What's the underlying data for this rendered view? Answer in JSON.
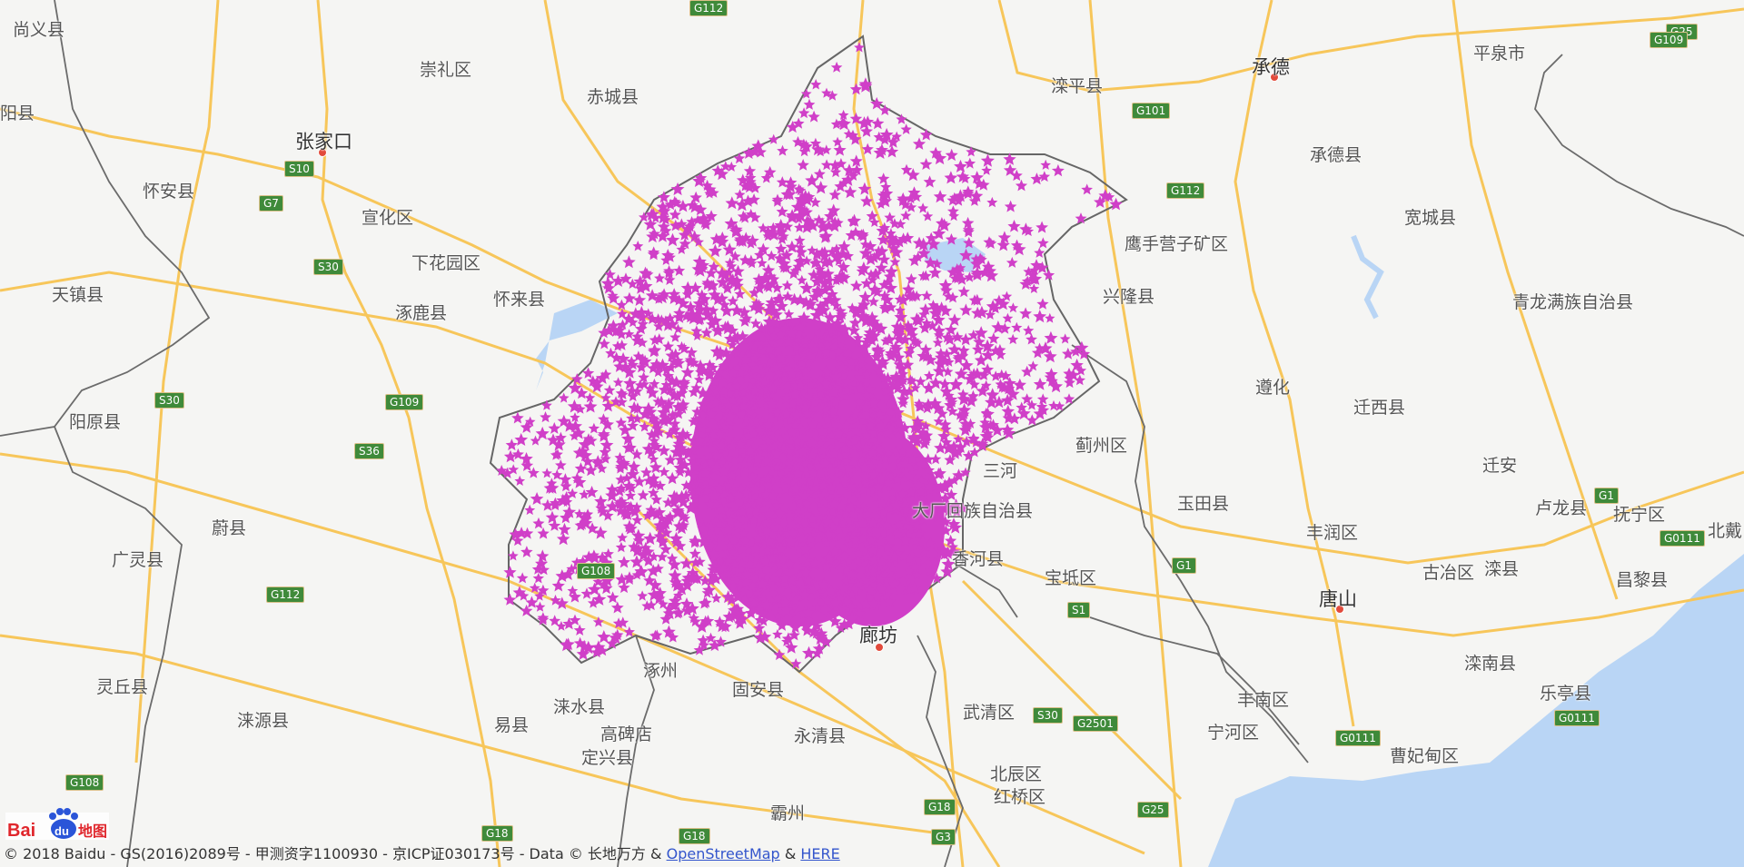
{
  "map": {
    "labels": [
      {
        "text": "尚义县",
        "city": false
      },
      {
        "text": "崇礼区",
        "city": false
      },
      {
        "text": "赤城县",
        "city": false
      },
      {
        "text": "滦平县",
        "city": false
      },
      {
        "text": "承德",
        "city": true
      },
      {
        "text": "平泉市",
        "city": false
      },
      {
        "text": "张家口",
        "city": true
      },
      {
        "text": "承德县",
        "city": false
      },
      {
        "text": "怀安县",
        "city": false
      },
      {
        "text": "宣化区",
        "city": false
      },
      {
        "text": "宽城县",
        "city": false
      },
      {
        "text": "鹰手营子矿区",
        "city": false
      },
      {
        "text": "下花园区",
        "city": false
      },
      {
        "text": "天镇县",
        "city": false
      },
      {
        "text": "怀来县",
        "city": false
      },
      {
        "text": "涿鹿县",
        "city": false
      },
      {
        "text": "兴隆县",
        "city": false
      },
      {
        "text": "青龙满族自治县",
        "city": false
      },
      {
        "text": "遵化",
        "city": false
      },
      {
        "text": "迁西县",
        "city": false
      },
      {
        "text": "阳原县",
        "city": false
      },
      {
        "text": "蓟州区",
        "city": false
      },
      {
        "text": "三河",
        "city": false
      },
      {
        "text": "迁安",
        "city": false
      },
      {
        "text": "大厂回族自治县",
        "city": false
      },
      {
        "text": "玉田县",
        "city": false
      },
      {
        "text": "卢龙县",
        "city": false
      },
      {
        "text": "抚宁区",
        "city": false
      },
      {
        "text": "蔚县",
        "city": false
      },
      {
        "text": "丰润区",
        "city": false
      },
      {
        "text": "广灵县",
        "city": false
      },
      {
        "text": "香河县",
        "city": false
      },
      {
        "text": "宝坻区",
        "city": false
      },
      {
        "text": "古冶区",
        "city": false
      },
      {
        "text": "滦县",
        "city": false
      },
      {
        "text": "昌黎县",
        "city": false
      },
      {
        "text": "唐山",
        "city": true
      },
      {
        "text": "廊坊",
        "city": true
      },
      {
        "text": "涿州",
        "city": false
      },
      {
        "text": "灵丘县",
        "city": false
      },
      {
        "text": "涞水县",
        "city": false
      },
      {
        "text": "固安县",
        "city": false
      },
      {
        "text": "滦南县",
        "city": false
      },
      {
        "text": "乐亭县",
        "city": false
      },
      {
        "text": "涞源县",
        "city": false
      },
      {
        "text": "易县",
        "city": false
      },
      {
        "text": "高碑店",
        "city": false
      },
      {
        "text": "永清县",
        "city": false
      },
      {
        "text": "武清区",
        "city": false
      },
      {
        "text": "丰南区",
        "city": false
      },
      {
        "text": "宁河区",
        "city": false
      },
      {
        "text": "定兴县",
        "city": false
      },
      {
        "text": "曹妃甸区",
        "city": false
      },
      {
        "text": "北辰区",
        "city": false
      },
      {
        "text": "红桥区",
        "city": false
      },
      {
        "text": "霸州",
        "city": false
      },
      {
        "text": "阳县",
        "city": false
      },
      {
        "text": "北戴",
        "city": false
      }
    ],
    "shields": [
      "G112",
      "G101",
      "G25",
      "S10",
      "G7",
      "G112",
      "S30",
      "S30",
      "G109",
      "S36",
      "G1",
      "G0111",
      "G1",
      "S1",
      "G112",
      "G108",
      "G0111",
      "G0111",
      "S30",
      "G2501",
      "G18",
      "G18",
      "G3",
      "G18",
      "G25",
      "G108",
      "G109"
    ],
    "marker_color": "#d03fc8",
    "water_color": "#b9d5f5",
    "road_color": "#f7c65a",
    "border_color": "#555555"
  },
  "footer": {
    "copyright": "© 2018 Baidu - GS(2016)2089号 - 甲测资字1100930 - 京ICP证030173号 - Data © 长地万方 &",
    "link1": "OpenStreetMap",
    "amp": "&",
    "link2": "HERE"
  },
  "logo": {
    "text1": "Bai",
    "text2": "du",
    "text3": "地图"
  }
}
